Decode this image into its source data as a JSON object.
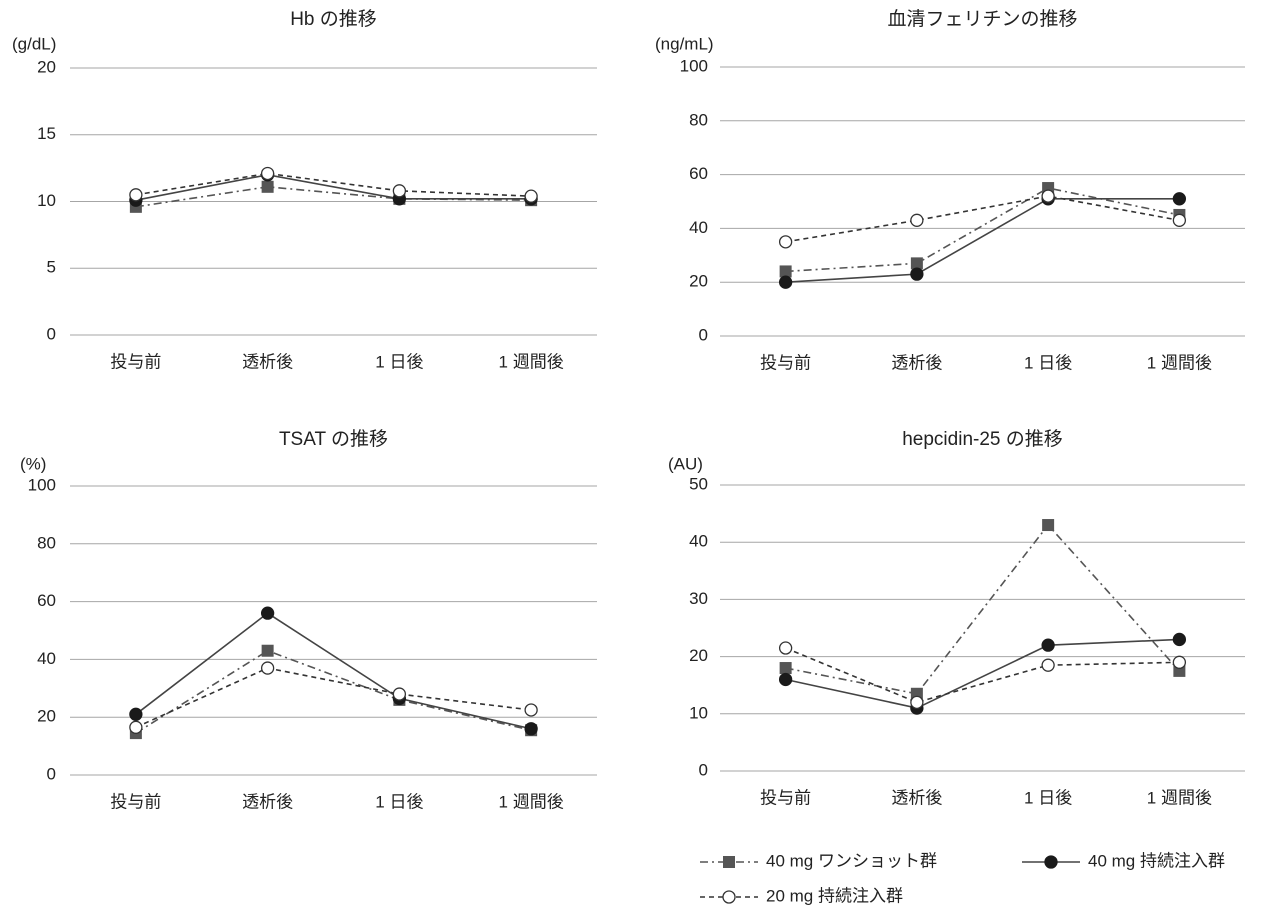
{
  "chart_data": [
    {
      "type": "line",
      "title": "Hb の推移",
      "y_label": "(g/dL)",
      "categories": [
        "投与前",
        "透析後",
        "1 日後",
        "1 週間後"
      ],
      "ylim": [
        0,
        20
      ],
      "yticks": [
        0,
        5,
        10,
        15,
        20
      ],
      "grid": true,
      "series": [
        {
          "name": "40 mg ワンショット群",
          "color": "#555555",
          "dash": "dash-dot",
          "marker": "square",
          "values": [
            9.6,
            11.1,
            10.2,
            10.1
          ]
        },
        {
          "name": "40 mg 持続注入群",
          "color": "#444444",
          "dash": "solid",
          "marker": "filled-circle",
          "values": [
            10.1,
            12.0,
            10.2,
            10.2
          ]
        },
        {
          "name": "20 mg 持続注入群",
          "color": "#333333",
          "dash": "dashed",
          "marker": "open-circle",
          "values": [
            10.5,
            12.1,
            10.8,
            10.4
          ]
        }
      ]
    },
    {
      "type": "line",
      "title": "血清フェリチンの推移",
      "y_label": "(ng/mL)",
      "categories": [
        "投与前",
        "透析後",
        "1 日後",
        "1 週間後"
      ],
      "ylim": [
        0,
        100
      ],
      "yticks": [
        0,
        20,
        40,
        60,
        80,
        100
      ],
      "grid": true,
      "series": [
        {
          "name": "40 mg ワンショット群",
          "color": "#555555",
          "dash": "dash-dot",
          "marker": "square",
          "values": [
            24,
            27,
            55,
            45
          ]
        },
        {
          "name": "40 mg 持続注入群",
          "color": "#444444",
          "dash": "solid",
          "marker": "filled-circle",
          "values": [
            20,
            23,
            51,
            51
          ]
        },
        {
          "name": "20 mg 持続注入群",
          "color": "#333333",
          "dash": "dashed",
          "marker": "open-circle",
          "values": [
            35,
            43,
            52,
            43
          ]
        }
      ]
    },
    {
      "type": "line",
      "title": "TSAT の推移",
      "y_label": "(%)",
      "categories": [
        "投与前",
        "透析後",
        "1 日後",
        "1 週間後"
      ],
      "ylim": [
        0,
        100
      ],
      "yticks": [
        0,
        20,
        40,
        60,
        80,
        100
      ],
      "grid": true,
      "series": [
        {
          "name": "40 mg ワンショット群",
          "color": "#555555",
          "dash": "dash-dot",
          "marker": "square",
          "values": [
            14.5,
            43,
            26,
            15.5
          ]
        },
        {
          "name": "40 mg 持続注入群",
          "color": "#444444",
          "dash": "solid",
          "marker": "filled-circle",
          "values": [
            21,
            56,
            26.5,
            16
          ]
        },
        {
          "name": "20 mg 持続注入群",
          "color": "#333333",
          "dash": "dashed",
          "marker": "open-circle",
          "values": [
            16.5,
            37,
            28,
            22.5
          ]
        }
      ]
    },
    {
      "type": "line",
      "title": "hepcidin-25 の推移",
      "y_label": "(AU)",
      "categories": [
        "投与前",
        "透析後",
        "1 日後",
        "1 週間後"
      ],
      "ylim": [
        0,
        50
      ],
      "yticks": [
        0,
        10,
        20,
        30,
        40,
        50
      ],
      "grid": true,
      "legend": "bottom",
      "series": [
        {
          "name": "40 mg ワンショット群",
          "color": "#555555",
          "dash": "dash-dot",
          "marker": "square",
          "values": [
            18,
            13.5,
            43,
            17.5
          ]
        },
        {
          "name": "40 mg 持続注入群",
          "color": "#444444",
          "dash": "solid",
          "marker": "filled-circle",
          "values": [
            16,
            11,
            22,
            23
          ]
        },
        {
          "name": "20 mg 持続注入群",
          "color": "#333333",
          "dash": "dashed",
          "marker": "open-circle",
          "values": [
            21.5,
            12,
            18.5,
            19
          ]
        }
      ]
    }
  ]
}
